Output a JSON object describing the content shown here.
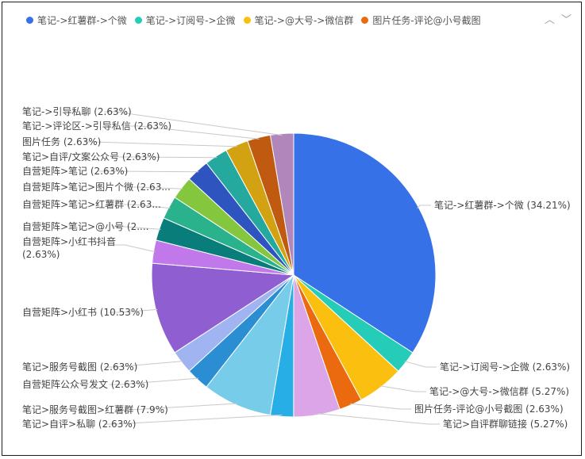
{
  "chart_data": {
    "type": "pie",
    "legend_placement": "top-left",
    "legend": [
      {
        "name": "笔记->红薯群->个微",
        "color": "#3671e7"
      },
      {
        "name": "笔记->订阅号->企微",
        "color": "#25cdb9"
      },
      {
        "name": "笔记->@大号->微信群",
        "color": "#fbc00f"
      },
      {
        "name": "图片任务-评论@小号截图",
        "color": "#ec6a0f"
      }
    ],
    "slices": [
      {
        "label": "笔记->红薯群->个微 (34.21%)",
        "value": 34.21,
        "color": "#3671e7"
      },
      {
        "label": "笔记->订阅号->企微 (2.63%)",
        "value": 2.63,
        "color": "#25cdb9"
      },
      {
        "label": "笔记->@大号->微信群 (5.27%)",
        "value": 5.27,
        "color": "#fbc00f"
      },
      {
        "label": "图片任务-评论@小号截图 (2.63%)",
        "value": 2.63,
        "color": "#ec6a0f"
      },
      {
        "label": "笔记>自评群聊链接 (5.27%)",
        "value": 5.27,
        "color": "#dba5e7"
      },
      {
        "label": "笔记>自评>私聊 (2.63%)",
        "value": 2.63,
        "color": "#28aee6"
      },
      {
        "label": "笔记>服务号截图>红薯群 (7.9%)",
        "value": 7.9,
        "color": "#77cce9"
      },
      {
        "label": "自营矩阵公众号发文 (2.63%)",
        "value": 2.63,
        "color": "#2b8ed3"
      },
      {
        "label": "笔记>服务号截图 (2.63%)",
        "value": 2.63,
        "color": "#9fb4f0"
      },
      {
        "label": "自营矩阵>小红书 (10.53%)",
        "value": 10.53,
        "color": "#8f5fd2"
      },
      {
        "label": "自营矩阵>小红书抖音 (2.63%)",
        "value": 2.63,
        "color": "#c178eb"
      },
      {
        "label": "自营矩阵>笔记>@小号 (2....",
        "value": 2.63,
        "color": "#087d7a"
      },
      {
        "label": "自营矩阵>笔记>红薯群 (2.63...",
        "value": 2.63,
        "color": "#2ab28c"
      },
      {
        "label": "自营矩阵>笔记>图片个微 (2.63...",
        "value": 2.63,
        "color": "#84c63e"
      },
      {
        "label": "自营矩阵>笔记 (2.63%)",
        "value": 2.63,
        "color": "#2e55bf"
      },
      {
        "label": "笔记>自评/文案公众号 (2.63%)",
        "value": 2.63,
        "color": "#25a89d"
      },
      {
        "label": "图片任务 (2.63%)",
        "value": 2.63,
        "color": "#d3a212"
      },
      {
        "label": "笔记->评论区->引导私信 (2.63%)",
        "value": 2.63,
        "color": "#c05a10"
      },
      {
        "label": "笔记->引导私聊 (2.63%)",
        "value": 2.63,
        "color": "#b186ba"
      }
    ]
  },
  "legend_nav": {
    "prev": "︿",
    "next": "﹀"
  }
}
